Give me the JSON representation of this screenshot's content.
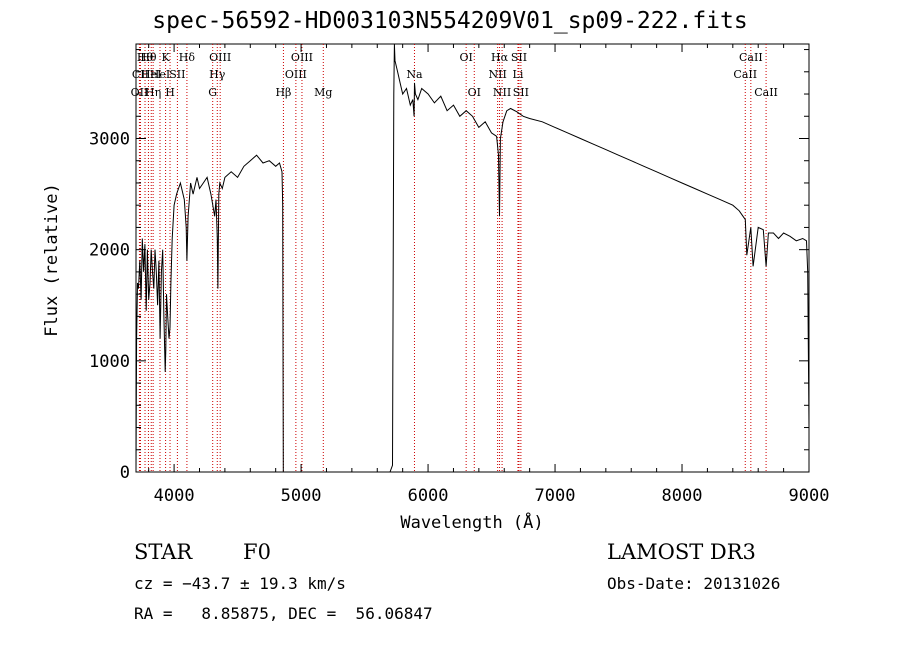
{
  "title": "spec-56592-HD003103N554209V01_sp09-222.fits",
  "info": {
    "object_class": "STAR",
    "subclass": "F0",
    "survey": "LAMOST DR3",
    "cz": "cz = −43.7 ± 19.3 km/s",
    "obs_date": "Obs-Date: 20131026",
    "coords": "RA =   8.85875, DEC =  56.06847"
  },
  "chart_data": {
    "type": "line",
    "xlabel": "Wavelength (Å)",
    "ylabel": "Flux (relative)",
    "xlim": [
      3700,
      9000
    ],
    "ylim": [
      0,
      3850
    ],
    "x_ticks": [
      4000,
      5000,
      6000,
      7000,
      8000,
      9000
    ],
    "x_tick_labels": [
      "4000",
      "5000",
      "6000",
      "7000",
      "8000",
      "9000"
    ],
    "y_ticks": [
      0,
      1000,
      2000,
      3000
    ],
    "y_tick_labels": [
      "0",
      "1000",
      "2000",
      "3000"
    ],
    "grid": false,
    "line_color": "#000000",
    "marker_color": "#cc0000",
    "series": [
      {
        "x": [
          3700,
          3705,
          3712,
          3720,
          3730,
          3740,
          3750,
          3760,
          3770,
          3780,
          3790,
          3800,
          3810,
          3820,
          3830,
          3840,
          3850,
          3860,
          3870,
          3880,
          3890,
          3900,
          3910,
          3920,
          3930,
          3935,
          3940,
          3950,
          3960,
          3968,
          3975,
          3985,
          4000,
          4020,
          4050,
          4080,
          4095,
          4101,
          4110,
          4130,
          4150,
          4180,
          4200,
          4230,
          4260,
          4290,
          4320,
          4330,
          4340,
          4345,
          4352,
          4360,
          4380,
          4400,
          4450,
          4500,
          4550,
          4600,
          4650,
          4700,
          4750,
          4800,
          4830,
          4850,
          4855,
          4860,
          4870,
          4900,
          5000,
          5200,
          5500,
          5700,
          5720,
          5730,
          5735,
          5740,
          5760,
          5780,
          5800,
          5830,
          5860,
          5880,
          5890,
          5893,
          5900,
          5920,
          5950,
          6000,
          6050,
          6100,
          6150,
          6200,
          6250,
          6300,
          6350,
          6400,
          6450,
          6500,
          6540,
          6555,
          6563,
          6570,
          6590,
          6620,
          6650,
          6700,
          6750,
          6800,
          6900,
          7000,
          7100,
          7200,
          7300,
          7400,
          7500,
          7600,
          7700,
          7800,
          7900,
          8000,
          8100,
          8200,
          8300,
          8400,
          8450,
          8498,
          8510,
          8542,
          8560,
          8600,
          8640,
          8662,
          8680,
          8720,
          8760,
          8800,
          8850,
          8900,
          8950,
          8980,
          8990,
          9000
        ],
        "y": [
          0,
          1200,
          1700,
          1650,
          1900,
          1550,
          2100,
          1800,
          2050,
          1450,
          2000,
          1550,
          1700,
          2000,
          1800,
          1650,
          2000,
          1800,
          1500,
          1900,
          1200,
          1800,
          2000,
          1400,
          900,
          1100,
          1600,
          1400,
          1200,
          1300,
          1700,
          2100,
          2400,
          2500,
          2600,
          2450,
          2200,
          1900,
          2300,
          2600,
          2500,
          2650,
          2550,
          2600,
          2650,
          2500,
          2300,
          2450,
          2100,
          1650,
          2500,
          2600,
          2550,
          2650,
          2700,
          2650,
          2750,
          2800,
          2850,
          2780,
          2800,
          2750,
          2780,
          2700,
          2400,
          0,
          0,
          0,
          0,
          0,
          0,
          0,
          60,
          3400,
          3850,
          3700,
          3600,
          3500,
          3400,
          3450,
          3300,
          3350,
          3200,
          3500,
          3400,
          3350,
          3450,
          3400,
          3320,
          3380,
          3250,
          3300,
          3200,
          3250,
          3200,
          3100,
          3150,
          3050,
          3020,
          2850,
          2300,
          3000,
          3150,
          3250,
          3270,
          3240,
          3200,
          3180,
          3150,
          3100,
          3050,
          3000,
          2950,
          2900,
          2850,
          2800,
          2750,
          2700,
          2650,
          2600,
          2550,
          2500,
          2450,
          2400,
          2350,
          2270,
          1950,
          2200,
          1850,
          2200,
          2180,
          1850,
          2150,
          2150,
          2100,
          2150,
          2120,
          2080,
          2100,
          2080,
          1800,
          400
        ]
      }
    ],
    "spectral_lines": [
      {
        "wavelength": 3727,
        "label": "OII",
        "row": 2
      },
      {
        "wavelength": 3735,
        "label": "CII",
        "row": 1
      },
      {
        "wavelength": 3771,
        "label": "Hθ",
        "row": 0
      },
      {
        "wavelength": 3798,
        "label": "Hθ",
        "row": 0
      },
      {
        "wavelength": 3820,
        "label": "HeI",
        "row": 1
      },
      {
        "wavelength": 3835,
        "label": "Hη",
        "row": 2
      },
      {
        "wavelength": 3889,
        "label": "HeI",
        "row": 1
      },
      {
        "wavelength": 3933,
        "label": "K",
        "row": 0
      },
      {
        "wavelength": 3968,
        "label": "H",
        "row": 2
      },
      {
        "wavelength": 4026,
        "label": "SII",
        "row": 1
      },
      {
        "wavelength": 4101,
        "label": "Hδ",
        "row": 0
      },
      {
        "wavelength": 4304,
        "label": "G",
        "row": 2
      },
      {
        "wavelength": 4340,
        "label": "Hγ",
        "row": 1
      },
      {
        "wavelength": 4363,
        "label": "OIII",
        "row": 0
      },
      {
        "wavelength": 4861,
        "label": "Hβ",
        "row": 2
      },
      {
        "wavelength": 4959,
        "label": "OIII",
        "row": 1
      },
      {
        "wavelength": 5007,
        "label": "OIII",
        "row": 0
      },
      {
        "wavelength": 5175,
        "label": "Mg",
        "row": 2
      },
      {
        "wavelength": 5893,
        "label": "Na",
        "row": 1
      },
      {
        "wavelength": 6300,
        "label": "OI",
        "row": 0
      },
      {
        "wavelength": 6364,
        "label": "OI",
        "row": 2
      },
      {
        "wavelength": 6548,
        "label": "NII",
        "row": 1
      },
      {
        "wavelength": 6563,
        "label": "Hα",
        "row": 0
      },
      {
        "wavelength": 6583,
        "label": "NII",
        "row": 2
      },
      {
        "wavelength": 6708,
        "label": "Li",
        "row": 1
      },
      {
        "wavelength": 6716,
        "label": "SII",
        "row": 0
      },
      {
        "wavelength": 6731,
        "label": "SII",
        "row": 2
      },
      {
        "wavelength": 8498,
        "label": "CaII",
        "row": 1
      },
      {
        "wavelength": 8542,
        "label": "CaII",
        "row": 0
      },
      {
        "wavelength": 8662,
        "label": "CaII",
        "row": 2
      }
    ]
  }
}
